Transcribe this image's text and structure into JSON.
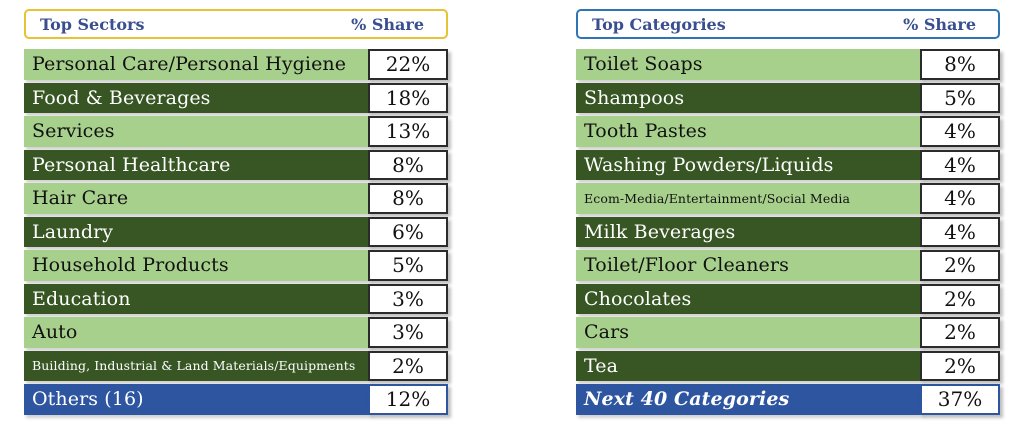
{
  "sectors": {
    "header_title": "Top Sectors",
    "header_share": "% Share",
    "rows": [
      {
        "label": "Personal Care/Personal Hygiene",
        "share": "22%",
        "style": "light"
      },
      {
        "label": "Food & Beverages",
        "share": "18%",
        "style": "dark"
      },
      {
        "label": "Services",
        "share": "13%",
        "style": "light"
      },
      {
        "label": "Personal Healthcare",
        "share": "8%",
        "style": "dark"
      },
      {
        "label": "Hair Care",
        "share": "8%",
        "style": "light"
      },
      {
        "label": "Laundry",
        "share": "6%",
        "style": "dark"
      },
      {
        "label": "Household Products",
        "share": "5%",
        "style": "light"
      },
      {
        "label": "Education",
        "share": "3%",
        "style": "dark"
      },
      {
        "label": "Auto",
        "share": "3%",
        "style": "light"
      },
      {
        "label": "Building, Industrial & Land Materials/Equipments",
        "share": "2%",
        "style": "dark"
      },
      {
        "label": "Others (16)",
        "share": "12%",
        "style": "blue"
      }
    ]
  },
  "categories": {
    "header_title": "Top Categories",
    "header_share": "% Share",
    "rows": [
      {
        "label": "Toilet Soaps",
        "share": "8%",
        "style": "light"
      },
      {
        "label": "Shampoos",
        "share": "5%",
        "style": "dark"
      },
      {
        "label": "Tooth Pastes",
        "share": "4%",
        "style": "light"
      },
      {
        "label": "Washing Powders/Liquids",
        "share": "4%",
        "style": "dark"
      },
      {
        "label": "Ecom-Media/Entertainment/Social Media",
        "share": "4%",
        "style": "light"
      },
      {
        "label": "Milk Beverages",
        "share": "4%",
        "style": "dark"
      },
      {
        "label": "Toilet/Floor Cleaners",
        "share": "2%",
        "style": "light"
      },
      {
        "label": "Chocolates",
        "share": "2%",
        "style": "dark"
      },
      {
        "label": "Cars",
        "share": "2%",
        "style": "light"
      },
      {
        "label": "Tea",
        "share": "2%",
        "style": "dark"
      },
      {
        "label": "Next 40 Categories",
        "share": "37%",
        "style": "blue"
      }
    ]
  }
}
